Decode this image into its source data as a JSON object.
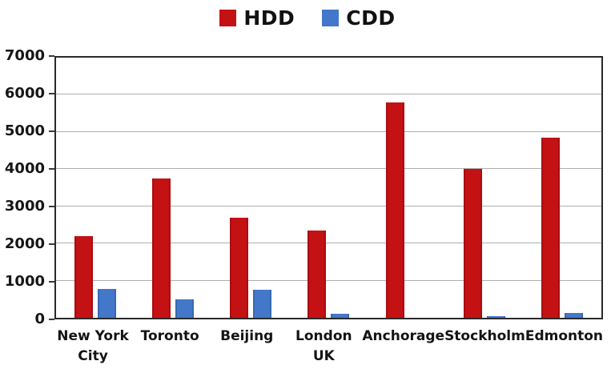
{
  "chart_data": {
    "type": "bar",
    "title": "",
    "xlabel": "",
    "ylabel": "",
    "categories": [
      "New York City",
      "Toronto",
      "Beijing",
      "London UK",
      "Anchorage",
      "Stockholm",
      "Edmonton"
    ],
    "series": [
      {
        "name": "HDD",
        "color": "#c41114",
        "values": [
          2200,
          3750,
          2700,
          2350,
          5800,
          4000,
          4850
        ]
      },
      {
        "name": "CDD",
        "color": "#4377c9",
        "values": [
          780,
          500,
          750,
          100,
          0,
          50,
          130
        ]
      }
    ],
    "ylim": [
      0,
      7000
    ],
    "yticks": [
      0,
      1000,
      2000,
      3000,
      4000,
      5000,
      6000,
      7000
    ],
    "grid": true,
    "legend_position": "top-center",
    "frame_color": "#2a2a2a",
    "gridline_color": "#aeaeae",
    "background_color": "#ffffff"
  }
}
